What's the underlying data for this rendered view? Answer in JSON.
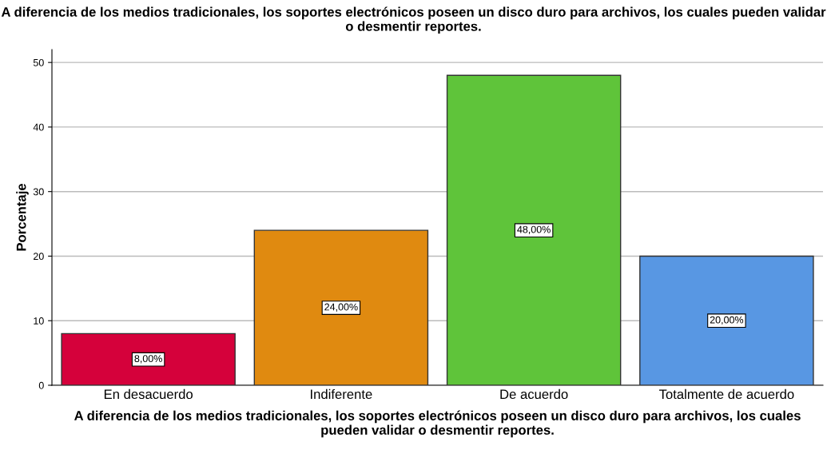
{
  "chart_data": {
    "type": "bar",
    "title": "A diferencia de los medios tradicionales, los soportes electrónicos poseen un disco duro para archivos, los cuales pueden validar o desmentir reportes.",
    "xlabel": "A diferencia de los medios tradicionales, los soportes electrónicos poseen un disco duro para archivos, los cuales pueden validar o desmentir reportes.",
    "ylabel": "Porcentaje",
    "categories": [
      "En desacuerdo",
      "Indiferente",
      "De acuerdo",
      "Totalmente de acuerdo"
    ],
    "values": [
      8,
      24,
      48,
      20
    ],
    "colors": [
      "#d5013b",
      "#e08a10",
      "#5fc43a",
      "#5897e3"
    ],
    "value_labels": [
      "8,00%",
      "24,00%",
      "48,00%",
      "20,00%"
    ],
    "ylim": [
      0,
      52
    ],
    "yticks": [
      0,
      10,
      20,
      30,
      40,
      50
    ],
    "grid": "y"
  }
}
